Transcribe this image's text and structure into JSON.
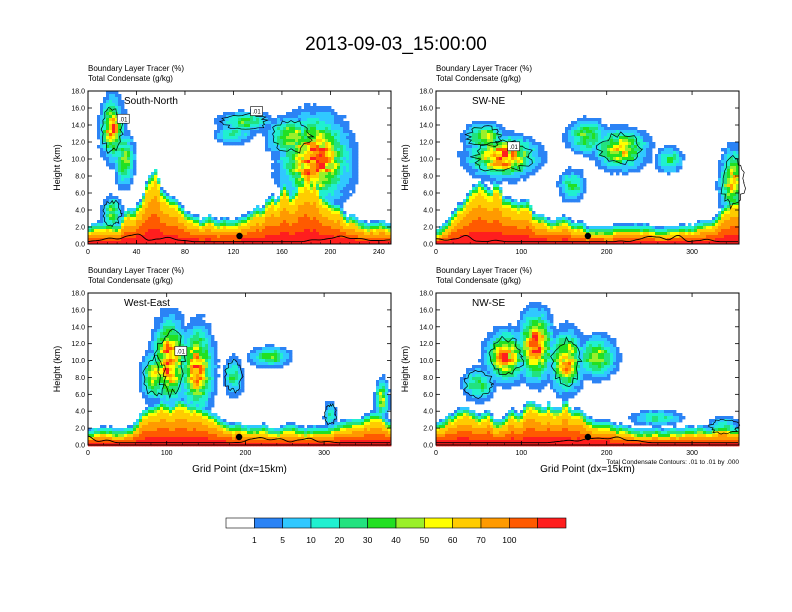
{
  "figure_title": "2013-09-03_15:00:00",
  "colorbar": {
    "bins": [
      {
        "label": "",
        "color": "#ffffff"
      },
      {
        "label": "1",
        "color": "#2b83f5"
      },
      {
        "label": "5",
        "color": "#30c8ff"
      },
      {
        "label": "10",
        "color": "#20f0d0"
      },
      {
        "label": "20",
        "color": "#22e27f"
      },
      {
        "label": "30",
        "color": "#22e022"
      },
      {
        "label": "40",
        "color": "#9af02a"
      },
      {
        "label": "50",
        "color": "#ffff00"
      },
      {
        "label": "60",
        "color": "#ffcc00"
      },
      {
        "label": "70",
        "color": "#ff9a00"
      },
      {
        "label": "100",
        "color": "#ff5a00"
      },
      {
        "label": "",
        "color": "#ff1e1e"
      }
    ]
  },
  "chart_data": [
    {
      "type": "heatmap",
      "panel_label": "South-North",
      "title_line1": "Boundary Layer Tracer   (%)",
      "title_line2": "Total Condensate   (g/kg)",
      "ylabel": "Height (km)",
      "xlabel": "",
      "xlim": [
        0,
        250
      ],
      "ylim": [
        0,
        18
      ],
      "xticks": [
        "0",
        "40",
        "80",
        "120",
        "160",
        "200",
        "240"
      ],
      "yticks": [
        "0.0",
        "2.0",
        "4.0",
        "6.0",
        "8.0",
        "10.0",
        "12.0",
        "14.0",
        "16.0",
        "18.0"
      ],
      "contour_labels": [
        ".01",
        ".01"
      ],
      "location_marker_x": 125
    },
    {
      "type": "heatmap",
      "panel_label": "SW-NE",
      "title_line1": "Boundary Layer Tracer   (%)",
      "title_line2": "Total Condensate   (g/kg)",
      "ylabel": "Height (km)",
      "xlabel": "",
      "xlim": [
        0,
        355
      ],
      "ylim": [
        0,
        18
      ],
      "xticks": [
        "0",
        "100",
        "200",
        "300"
      ],
      "yticks": [
        "0.0",
        "2.0",
        "4.0",
        "6.0",
        "8.0",
        "10.0",
        "12.0",
        "14.0",
        "16.0",
        "18.0"
      ],
      "contour_labels": [
        ".01"
      ],
      "location_marker_x": 178
    },
    {
      "type": "heatmap",
      "panel_label": "West-East",
      "title_line1": "Boundary Layer Tracer   (%)",
      "title_line2": "Total Condensate   (g/kg)",
      "ylabel": "Height (km)",
      "xlabel": "Grid Point (dx=15km)",
      "xlim": [
        0,
        385
      ],
      "ylim": [
        0,
        18
      ],
      "xticks": [
        "0",
        "100",
        "200",
        "300"
      ],
      "yticks": [
        "0.0",
        "2.0",
        "4.0",
        "6.0",
        "8.0",
        "10.0",
        "12.0",
        "14.0",
        "16.0",
        "18.0"
      ],
      "contour_labels": [
        ".01"
      ],
      "location_marker_x": 192
    },
    {
      "type": "heatmap",
      "panel_label": "NW-SE",
      "title_line1": "Boundary Layer Tracer   (%)",
      "title_line2": "Total Condensate   (g/kg)",
      "ylabel": "Height (km)",
      "xlabel": "Grid Point (dx=15km)",
      "xlim": [
        0,
        355
      ],
      "ylim": [
        0,
        18
      ],
      "xticks": [
        "0",
        "100",
        "200",
        "300"
      ],
      "yticks": [
        "0.0",
        "2.0",
        "4.0",
        "6.0",
        "8.0",
        "10.0",
        "12.0",
        "14.0",
        "16.0",
        "18.0"
      ],
      "contour_labels": [],
      "location_marker_x": 178,
      "footnote": "Total Condensate Contours: .01 to .01 by .000"
    }
  ]
}
